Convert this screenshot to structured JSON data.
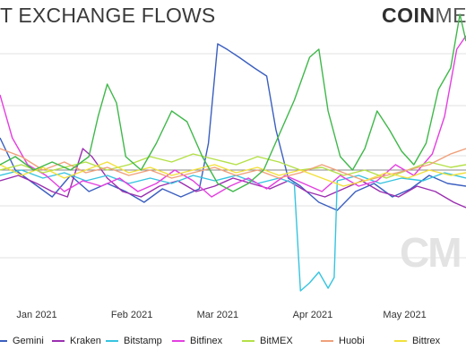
{
  "header": {
    "title": "T EXCHANGE FLOWS",
    "logo_bold": "COIN",
    "logo_light": "ME",
    "watermark": "CM"
  },
  "chart_data": {
    "type": "line",
    "title": "T EXCHANGE FLOWS",
    "xlabel": "",
    "ylabel": "",
    "x_ticks": [
      "Jan 2021",
      "Feb 2021",
      "Mar 2021",
      "Apr 2021",
      "May 2021"
    ],
    "x_range": [
      "2020-12-20",
      "2021-05-21"
    ],
    "grid": "horizontal",
    "legend_position": "bottom",
    "series": [
      {
        "name": "Gemini",
        "color": "#3b5fc0",
        "points": [
          [
            "2020-12-20",
            0.62
          ],
          [
            "2020-12-25",
            0.5
          ],
          [
            "2020-12-31",
            0.45
          ],
          [
            "2021-01-06",
            0.4
          ],
          [
            "2021-01-12",
            0.48
          ],
          [
            "2021-01-18",
            0.42
          ],
          [
            "2021-01-24",
            0.45
          ],
          [
            "2021-01-30",
            0.42
          ],
          [
            "2021-02-05",
            0.38
          ],
          [
            "2021-02-11",
            0.43
          ],
          [
            "2021-02-17",
            0.4
          ],
          [
            "2021-02-23",
            0.43
          ],
          [
            "2021-02-26",
            0.6
          ],
          [
            "2021-03-01",
            0.97
          ],
          [
            "2021-03-04",
            0.95
          ],
          [
            "2021-03-08",
            0.92
          ],
          [
            "2021-03-13",
            0.88
          ],
          [
            "2021-03-17",
            0.85
          ],
          [
            "2021-03-20",
            0.65
          ],
          [
            "2021-03-24",
            0.47
          ],
          [
            "2021-03-28",
            0.44
          ],
          [
            "2021-04-03",
            0.38
          ],
          [
            "2021-04-09",
            0.35
          ],
          [
            "2021-04-15",
            0.42
          ],
          [
            "2021-04-21",
            0.45
          ],
          [
            "2021-04-27",
            0.4
          ],
          [
            "2021-05-03",
            0.43
          ],
          [
            "2021-05-09",
            0.48
          ],
          [
            "2021-05-15",
            0.45
          ],
          [
            "2021-05-21",
            0.44
          ]
        ]
      },
      {
        "name": "Kraken",
        "color": "#9b2fb0",
        "points": [
          [
            "2020-12-20",
            0.46
          ],
          [
            "2020-12-26",
            0.48
          ],
          [
            "2021-01-01",
            0.45
          ],
          [
            "2021-01-06",
            0.42
          ],
          [
            "2021-01-11",
            0.4
          ],
          [
            "2021-01-16",
            0.58
          ],
          [
            "2021-01-19",
            0.55
          ],
          [
            "2021-01-24",
            0.47
          ],
          [
            "2021-01-29",
            0.42
          ],
          [
            "2021-02-04",
            0.4
          ],
          [
            "2021-02-10",
            0.44
          ],
          [
            "2021-02-16",
            0.46
          ],
          [
            "2021-02-22",
            0.42
          ],
          [
            "2021-02-28",
            0.44
          ],
          [
            "2021-03-06",
            0.47
          ],
          [
            "2021-03-12",
            0.45
          ],
          [
            "2021-03-18",
            0.43
          ],
          [
            "2021-03-24",
            0.46
          ],
          [
            "2021-03-30",
            0.42
          ],
          [
            "2021-04-05",
            0.4
          ],
          [
            "2021-04-11",
            0.43
          ],
          [
            "2021-04-17",
            0.46
          ],
          [
            "2021-04-23",
            0.42
          ],
          [
            "2021-04-29",
            0.4
          ],
          [
            "2021-05-05",
            0.44
          ],
          [
            "2021-05-11",
            0.42
          ],
          [
            "2021-05-17",
            0.38
          ],
          [
            "2021-05-21",
            0.36
          ]
        ]
      },
      {
        "name": "Bitstamp",
        "color": "#36c4e0",
        "points": [
          [
            "2020-12-20",
            0.48
          ],
          [
            "2020-12-27",
            0.5
          ],
          [
            "2021-01-03",
            0.47
          ],
          [
            "2021-01-10",
            0.49
          ],
          [
            "2021-01-17",
            0.46
          ],
          [
            "2021-01-24",
            0.48
          ],
          [
            "2021-01-31",
            0.45
          ],
          [
            "2021-02-07",
            0.47
          ],
          [
            "2021-02-14",
            0.45
          ],
          [
            "2021-02-21",
            0.48
          ],
          [
            "2021-02-28",
            0.46
          ],
          [
            "2021-03-07",
            0.48
          ],
          [
            "2021-03-14",
            0.45
          ],
          [
            "2021-03-21",
            0.47
          ],
          [
            "2021-03-26",
            0.45
          ],
          [
            "2021-03-28",
            0.05
          ],
          [
            "2021-03-31",
            0.08
          ],
          [
            "2021-04-03",
            0.12
          ],
          [
            "2021-04-06",
            0.06
          ],
          [
            "2021-04-08",
            0.1
          ],
          [
            "2021-04-09",
            0.46
          ],
          [
            "2021-04-16",
            0.48
          ],
          [
            "2021-04-23",
            0.45
          ],
          [
            "2021-04-30",
            0.47
          ],
          [
            "2021-05-07",
            0.46
          ],
          [
            "2021-05-14",
            0.49
          ],
          [
            "2021-05-21",
            0.47
          ]
        ]
      },
      {
        "name": "Bitfinex",
        "color": "#e43fe0",
        "points": [
          [
            "2020-12-20",
            0.78
          ],
          [
            "2020-12-24",
            0.62
          ],
          [
            "2020-12-29",
            0.52
          ],
          [
            "2021-01-04",
            0.48
          ],
          [
            "2021-01-10",
            0.42
          ],
          [
            "2021-01-16",
            0.46
          ],
          [
            "2021-01-22",
            0.44
          ],
          [
            "2021-01-28",
            0.47
          ],
          [
            "2021-02-03",
            0.42
          ],
          [
            "2021-02-09",
            0.45
          ],
          [
            "2021-02-15",
            0.5
          ],
          [
            "2021-02-21",
            0.46
          ],
          [
            "2021-02-27",
            0.4
          ],
          [
            "2021-03-05",
            0.44
          ],
          [
            "2021-03-11",
            0.47
          ],
          [
            "2021-03-17",
            0.43
          ],
          [
            "2021-03-23",
            0.48
          ],
          [
            "2021-03-29",
            0.45
          ],
          [
            "2021-04-04",
            0.42
          ],
          [
            "2021-04-10",
            0.48
          ],
          [
            "2021-04-16",
            0.44
          ],
          [
            "2021-04-22",
            0.46
          ],
          [
            "2021-04-28",
            0.52
          ],
          [
            "2021-05-04",
            0.48
          ],
          [
            "2021-05-10",
            0.56
          ],
          [
            "2021-05-14",
            0.7
          ],
          [
            "2021-05-18",
            0.95
          ],
          [
            "2021-05-21",
            1.0
          ]
        ]
      },
      {
        "name": "BitMEX",
        "color": "#b4e046",
        "points": [
          [
            "2020-12-20",
            0.5
          ],
          [
            "2020-12-27",
            0.52
          ],
          [
            "2021-01-03",
            0.49
          ],
          [
            "2021-01-10",
            0.51
          ],
          [
            "2021-01-17",
            0.53
          ],
          [
            "2021-01-24",
            0.5
          ],
          [
            "2021-01-31",
            0.52
          ],
          [
            "2021-02-07",
            0.55
          ],
          [
            "2021-02-14",
            0.53
          ],
          [
            "2021-02-21",
            0.56
          ],
          [
            "2021-02-28",
            0.54
          ],
          [
            "2021-03-07",
            0.52
          ],
          [
            "2021-03-14",
            0.55
          ],
          [
            "2021-03-21",
            0.53
          ],
          [
            "2021-03-28",
            0.5
          ],
          [
            "2021-04-04",
            0.51
          ],
          [
            "2021-04-11",
            0.48
          ],
          [
            "2021-04-18",
            0.5
          ],
          [
            "2021-04-25",
            0.47
          ],
          [
            "2021-05-02",
            0.5
          ],
          [
            "2021-05-09",
            0.53
          ],
          [
            "2021-05-16",
            0.51
          ],
          [
            "2021-05-21",
            0.52
          ]
        ]
      },
      {
        "name": "Huobi",
        "color": "#f0a07a",
        "points": [
          [
            "2020-12-20",
            0.58
          ],
          [
            "2020-12-27",
            0.55
          ],
          [
            "2021-01-03",
            0.5
          ],
          [
            "2021-01-10",
            0.53
          ],
          [
            "2021-01-17",
            0.49
          ],
          [
            "2021-01-24",
            0.51
          ],
          [
            "2021-01-31",
            0.48
          ],
          [
            "2021-02-07",
            0.5
          ],
          [
            "2021-02-14",
            0.47
          ],
          [
            "2021-02-21",
            0.49
          ],
          [
            "2021-02-28",
            0.51
          ],
          [
            "2021-03-07",
            0.48
          ],
          [
            "2021-03-14",
            0.5
          ],
          [
            "2021-03-21",
            0.47
          ],
          [
            "2021-03-28",
            0.49
          ],
          [
            "2021-04-04",
            0.52
          ],
          [
            "2021-04-11",
            0.49
          ],
          [
            "2021-04-18",
            0.46
          ],
          [
            "2021-04-25",
            0.48
          ],
          [
            "2021-05-02",
            0.5
          ],
          [
            "2021-05-09",
            0.52
          ],
          [
            "2021-05-16",
            0.56
          ],
          [
            "2021-05-21",
            0.58
          ]
        ]
      },
      {
        "name": "Bittrex",
        "color": "#f2e03a",
        "points": [
          [
            "2020-12-20",
            0.52
          ],
          [
            "2020-12-27",
            0.48
          ],
          [
            "2021-01-03",
            0.51
          ],
          [
            "2021-01-10",
            0.47
          ],
          [
            "2021-01-17",
            0.5
          ],
          [
            "2021-01-24",
            0.53
          ],
          [
            "2021-01-31",
            0.49
          ],
          [
            "2021-02-07",
            0.51
          ],
          [
            "2021-02-14",
            0.48
          ],
          [
            "2021-02-21",
            0.5
          ],
          [
            "2021-02-28",
            0.52
          ],
          [
            "2021-03-07",
            0.49
          ],
          [
            "2021-03-14",
            0.51
          ],
          [
            "2021-03-21",
            0.48
          ],
          [
            "2021-03-28",
            0.5
          ],
          [
            "2021-04-04",
            0.47
          ],
          [
            "2021-04-11",
            0.44
          ],
          [
            "2021-04-18",
            0.46
          ],
          [
            "2021-04-25",
            0.49
          ],
          [
            "2021-05-02",
            0.47
          ],
          [
            "2021-05-09",
            0.5
          ],
          [
            "2021-05-16",
            0.48
          ],
          [
            "2021-05-21",
            0.49
          ]
        ]
      },
      {
        "name": "",
        "color": "#3fb84a",
        "points": [
          [
            "2020-12-20",
            0.52
          ],
          [
            "2020-12-25",
            0.55
          ],
          [
            "2020-12-31",
            0.5
          ],
          [
            "2021-01-06",
            0.53
          ],
          [
            "2021-01-12",
            0.5
          ],
          [
            "2021-01-18",
            0.55
          ],
          [
            "2021-01-21",
            0.7
          ],
          [
            "2021-01-24",
            0.82
          ],
          [
            "2021-01-27",
            0.75
          ],
          [
            "2021-01-30",
            0.55
          ],
          [
            "2021-02-04",
            0.5
          ],
          [
            "2021-02-09",
            0.6
          ],
          [
            "2021-02-14",
            0.72
          ],
          [
            "2021-02-19",
            0.68
          ],
          [
            "2021-02-24",
            0.55
          ],
          [
            "2021-03-01",
            0.45
          ],
          [
            "2021-03-06",
            0.42
          ],
          [
            "2021-03-11",
            0.45
          ],
          [
            "2021-03-16",
            0.5
          ],
          [
            "2021-03-21",
            0.63
          ],
          [
            "2021-03-26",
            0.76
          ],
          [
            "2021-03-31",
            0.92
          ],
          [
            "2021-04-03",
            0.95
          ],
          [
            "2021-04-06",
            0.72
          ],
          [
            "2021-04-10",
            0.55
          ],
          [
            "2021-04-14",
            0.5
          ],
          [
            "2021-04-18",
            0.58
          ],
          [
            "2021-04-22",
            0.72
          ],
          [
            "2021-04-26",
            0.65
          ],
          [
            "2021-04-30",
            0.57
          ],
          [
            "2021-05-04",
            0.52
          ],
          [
            "2021-05-08",
            0.6
          ],
          [
            "2021-05-12",
            0.8
          ],
          [
            "2021-05-16",
            0.88
          ],
          [
            "2021-05-19",
            1.08
          ],
          [
            "2021-05-21",
            0.98
          ]
        ]
      }
    ]
  }
}
